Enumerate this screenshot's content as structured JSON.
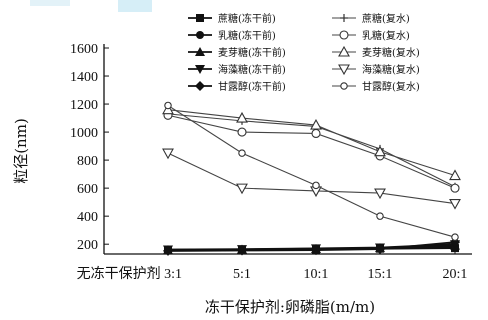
{
  "chart_data": {
    "type": "line",
    "title": "",
    "xlabel": "冻干保护剂:卵磷脂(m/m)",
    "ylabel": "粒径(nm)",
    "ylim": [
      130,
      1600
    ],
    "yticks": [
      200,
      400,
      600,
      800,
      1000,
      1200,
      1400,
      1600
    ],
    "categories": [
      "无冻干保护剂 3:1",
      "5:1",
      "10:1",
      "15:1",
      "20:1"
    ],
    "series": [
      {
        "name": "蔗糖(冻干前)",
        "group": "before",
        "marker": "square-filled",
        "values": [
          155,
          158,
          162,
          168,
          172
        ]
      },
      {
        "name": "乳糖(冻干前)",
        "group": "before",
        "marker": "circle-filled",
        "values": [
          160,
          163,
          168,
          172,
          180
        ]
      },
      {
        "name": "麦芽糖(冻干前)",
        "group": "before",
        "marker": "triangle-filled",
        "values": [
          158,
          162,
          166,
          172,
          190
        ]
      },
      {
        "name": "海藻糖(冻干前)",
        "group": "before",
        "marker": "tri-down-filled",
        "values": [
          162,
          165,
          170,
          176,
          200
        ]
      },
      {
        "name": "甘露醇(冻干前)",
        "group": "before",
        "marker": "diamond-filled",
        "values": [
          152,
          155,
          158,
          165,
          215
        ]
      },
      {
        "name": "蔗糖(复水)",
        "group": "after",
        "marker": "plus",
        "values": [
          1130,
          1080,
          1040,
          880,
          610
        ]
      },
      {
        "name": "乳糖(复水)",
        "group": "after",
        "marker": "circle-open",
        "values": [
          1120,
          1000,
          990,
          830,
          600
        ]
      },
      {
        "name": "麦芽糖(复水)",
        "group": "after",
        "marker": "triangle-open",
        "values": [
          1160,
          1100,
          1050,
          860,
          690
        ]
      },
      {
        "name": "海藻糖(复水)",
        "group": "after",
        "marker": "tri-down-open",
        "values": [
          850,
          600,
          580,
          565,
          490
        ]
      },
      {
        "name": "甘露醇(复水)",
        "group": "after",
        "marker": "circle-open-small",
        "values": [
          1190,
          850,
          620,
          400,
          250
        ]
      }
    ],
    "grid": false,
    "legend_position": "top-right"
  }
}
